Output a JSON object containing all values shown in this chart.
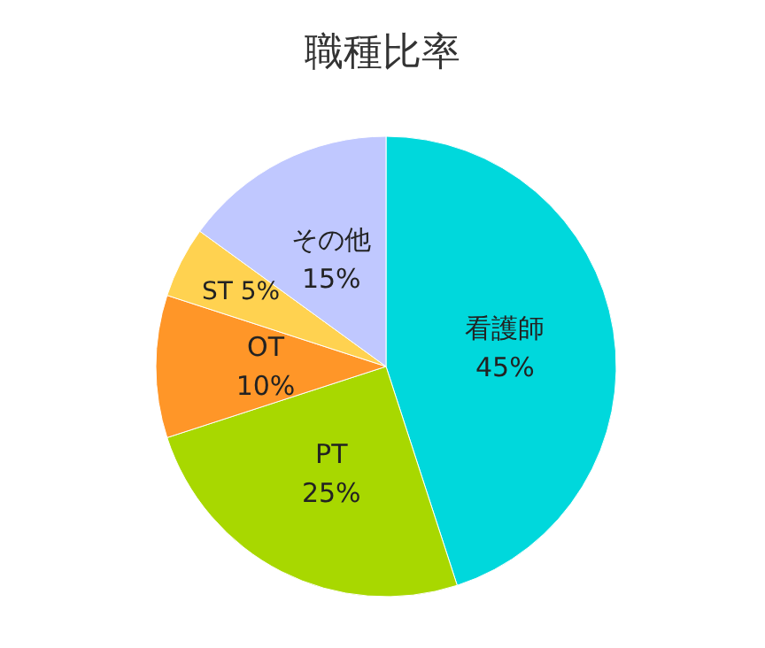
{
  "chart_data": {
    "type": "pie",
    "title": "職種比率",
    "categories": [
      "看護師",
      "PT",
      "OT",
      "ST",
      "その他"
    ],
    "values": [
      45,
      25,
      10,
      5,
      15
    ],
    "value_labels": [
      "45%",
      "25%",
      "10%",
      "5%",
      "15%"
    ],
    "colors": [
      "#00d8dc",
      "#a8d800",
      "#ff9628",
      "#ffd250",
      "#c0c8ff"
    ],
    "legend": false
  }
}
